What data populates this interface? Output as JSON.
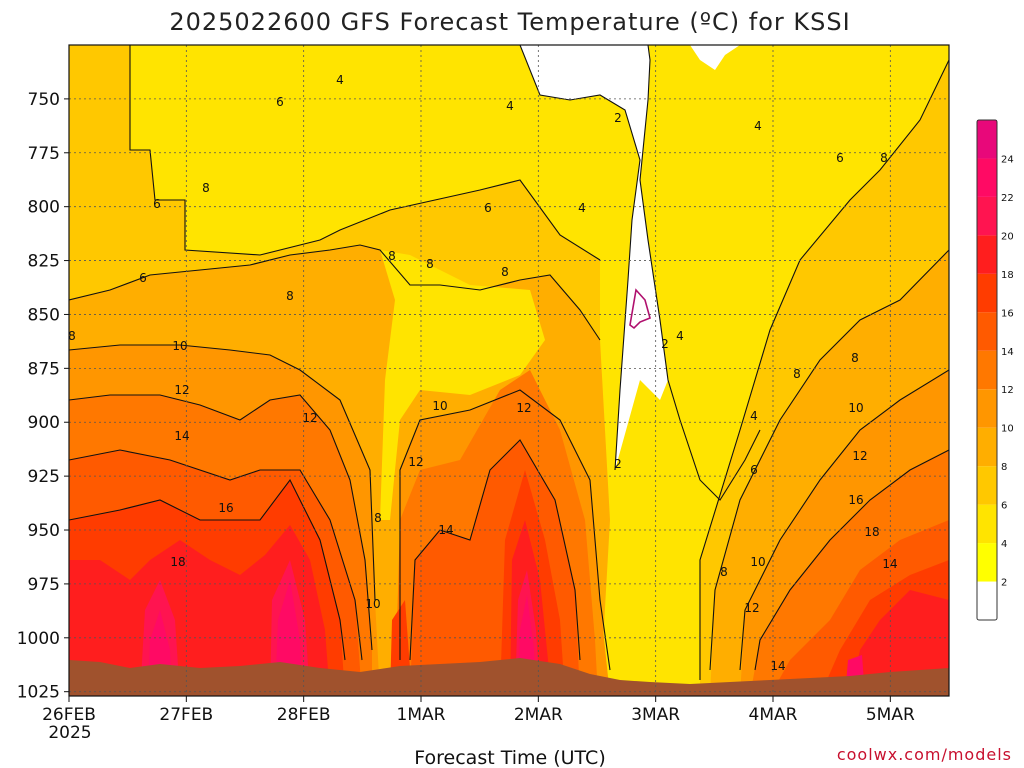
{
  "chart_data": {
    "type": "heatmap",
    "title": "2025022600 GFS Forecast Temperature (ºC) for KSSI",
    "xlabel": "Forecast Time (UTC)",
    "ylabel": "",
    "x_ticks": [
      "26FEB",
      "27FEB",
      "28FEB",
      "1MAR",
      "2MAR",
      "3MAR",
      "4MAR",
      "5MAR"
    ],
    "x_year_label": "2025",
    "y_ticks": [
      "750",
      "775",
      "800",
      "825",
      "850",
      "875",
      "900",
      "925",
      "950",
      "975",
      "1000",
      "1025"
    ],
    "ylim": [
      725,
      1027
    ],
    "xlim_days": [
      0,
      7.5
    ],
    "colorbar": {
      "levels": [
        2,
        4,
        6,
        8,
        10,
        12,
        14,
        16,
        18,
        20,
        22,
        24
      ],
      "colors": [
        "#ffffff",
        "#ffff00",
        "#ffe400",
        "#ffc800",
        "#ffae00",
        "#ff9600",
        "#ff7800",
        "#ff5a00",
        "#ff3c00",
        "#ff1e1e",
        "#ff1450",
        "#ff0a64",
        "#e8087a"
      ]
    },
    "grid": true,
    "contour_labels": [
      "6",
      "4",
      "4",
      "2",
      "4",
      "6",
      "8",
      "6",
      "8",
      "6",
      "4",
      "6",
      "8",
      "8",
      "8",
      "8",
      "8",
      "2",
      "4",
      "8",
      "10",
      "12",
      "14",
      "16",
      "18",
      "12",
      "10",
      "12",
      "12",
      "2",
      "4",
      "8",
      "14",
      "10",
      "6",
      "10",
      "12",
      "8",
      "10",
      "12",
      "14",
      "16",
      "18",
      "14",
      "8"
    ],
    "credit": "coolwx.com/models"
  }
}
